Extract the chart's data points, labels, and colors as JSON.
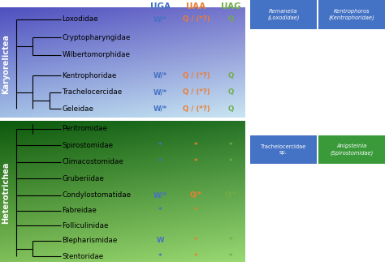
{
  "karyorelictea_taxa": [
    "Loxodidae",
    "Cryptopharyngidae",
    "Wilbertomorphidae",
    "Kentrophoridae",
    "Trachelocercidae",
    "Geleidae"
  ],
  "heterotrichea_taxa": [
    "Peritromidae",
    "Spirostomidae",
    "Climacostomidae",
    "Gruberiidae",
    "Condylostomatidae",
    "Fabreidae",
    "Folliculinidae",
    "Blepharismidae",
    "Stentoridae"
  ],
  "karyorelictea_annotations": {
    "Loxodidae": {
      "UGA": "W/*",
      "UAA": "Q / (*?)",
      "UAG": "Q"
    },
    "Cryptopharyngidae": {
      "UGA": "",
      "UAA": "",
      "UAG": ""
    },
    "Wilbertomorphidae": {
      "UGA": "",
      "UAA": "",
      "UAG": ""
    },
    "Kentrophoridae": {
      "UGA": "W/*",
      "UAA": "Q / (*?)",
      "UAG": "Q"
    },
    "Trachelocercidae": {
      "UGA": "W/*",
      "UAA": "Q / (*?)",
      "UAG": "Q"
    },
    "Geleidae": {
      "UGA": "W/*",
      "UAA": "Q / (*?)",
      "UAG": "Q"
    }
  },
  "heterotrichea_annotations": {
    "Peritromidae": {
      "UGA": "",
      "UAA": "",
      "UAG": ""
    },
    "Spirostomidae": {
      "UGA": "*",
      "UAA": "*",
      "UAG": "*"
    },
    "Climacostomidae": {
      "UGA": "*",
      "UAA": "*",
      "UAG": "*"
    },
    "Gruberiidae": {
      "UGA": "",
      "UAA": "",
      "UAG": ""
    },
    "Condylostomatidae": {
      "UGA": "W/*",
      "UAA": "Q/*",
      "UAG": "Q/*"
    },
    "Fabreidae": {
      "UGA": "*",
      "UAA": "*",
      "UAG": "*"
    },
    "Folliculinidae": {
      "UGA": "",
      "UAA": "",
      "UAG": ""
    },
    "Blepharismidae": {
      "UGA": "W",
      "UAA": "*",
      "UAG": "*"
    },
    "Stentoridae": {
      "UGA": "*",
      "UAA": "*",
      "UAG": "*"
    }
  },
  "header_UGA": "UGA",
  "header_UAA": "UAA",
  "header_UAG": "UAG",
  "color_UGA": "#4472C4",
  "color_UAA": "#ED7D31",
  "color_UAG": "#70AD47",
  "karyo_bg_top": "#6666CC",
  "karyo_bg_bottom": "#99BBEE",
  "hetero_bg_top": "#339944",
  "hetero_bg_bottom": "#AADDAA",
  "karyorelictea_label": "Karyorelictea",
  "heterotrichea_label": "Heterotrichea",
  "photo_labels": [
    {
      "text": "Remanella\n(Loxodidae)",
      "color": "#4472C4"
    },
    {
      "text": "Kentrophoros\n(Kentrophoridae)",
      "color": "#4472C4"
    },
    {
      "text": "Trachelocercidae\nsp.",
      "color": "#4472C4"
    },
    {
      "text": "Anigsteinia\n(Spirostomidae)",
      "color": "#3A9A3A"
    }
  ]
}
